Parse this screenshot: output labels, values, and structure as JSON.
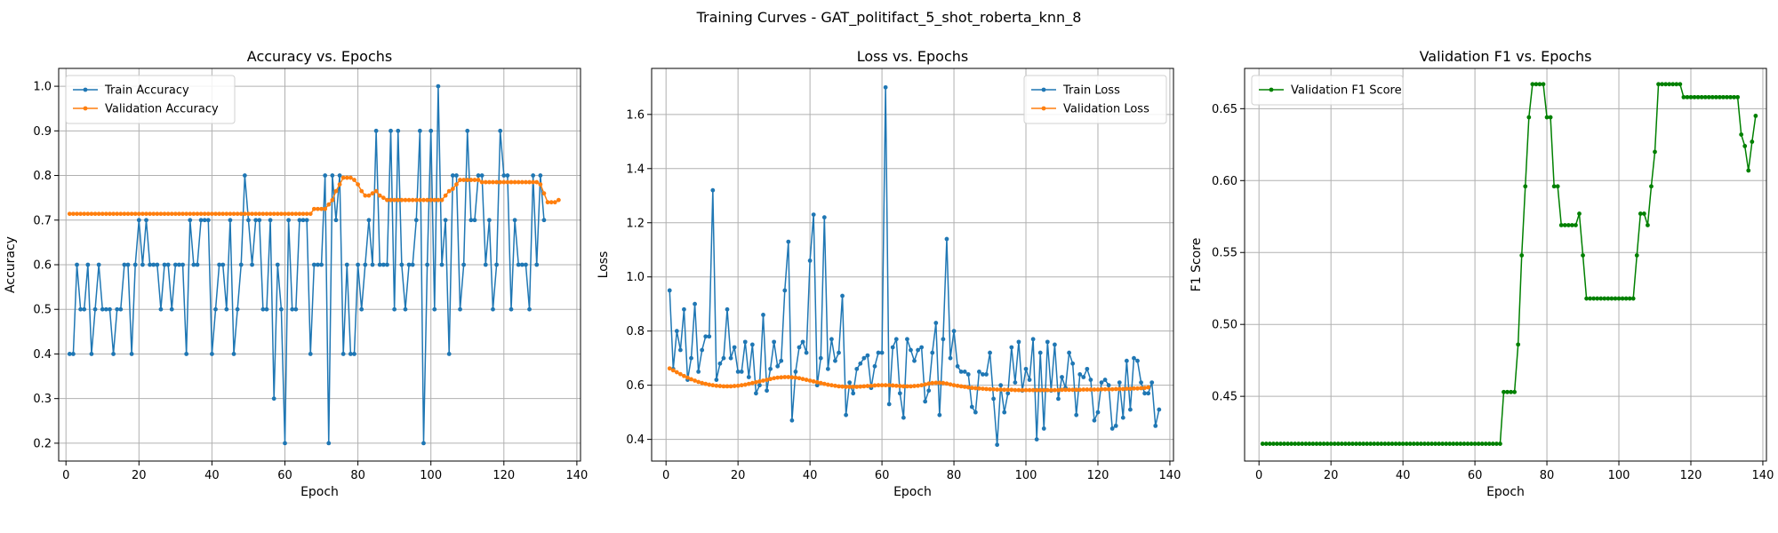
{
  "suptitle": "Training Curves - GAT_politifact_5_shot_roberta_knn_8",
  "chart_data": [
    {
      "type": "line",
      "title": "Accuracy vs. Epochs",
      "xlabel": "Epoch",
      "ylabel": "Accuracy",
      "xlim": [
        -2,
        141
      ],
      "ylim": [
        0.16,
        1.04
      ],
      "xticks": [
        0,
        20,
        40,
        60,
        80,
        100,
        120,
        140
      ],
      "yticks": [
        0.2,
        0.3,
        0.4,
        0.5,
        0.6,
        0.7,
        0.8,
        0.9,
        1.0
      ],
      "ytick_labels": [
        "0.2",
        "0.3",
        "0.4",
        "0.5",
        "0.6",
        "0.7",
        "0.8",
        "0.9",
        "1.0"
      ],
      "grid": true,
      "legend": "upper-left",
      "series": [
        {
          "name": "Train Accuracy",
          "color": "#1f77b4",
          "values": [
            0.4,
            0.4,
            0.6,
            0.5,
            0.5,
            0.6,
            0.4,
            0.5,
            0.6,
            0.5,
            0.5,
            0.5,
            0.4,
            0.5,
            0.5,
            0.6,
            0.6,
            0.4,
            0.6,
            0.7,
            0.6,
            0.7,
            0.6,
            0.6,
            0.6,
            0.5,
            0.6,
            0.6,
            0.5,
            0.6,
            0.6,
            0.6,
            0.4,
            0.7,
            0.6,
            0.6,
            0.7,
            0.7,
            0.7,
            0.4,
            0.5,
            0.6,
            0.6,
            0.5,
            0.7,
            0.4,
            0.5,
            0.6,
            0.8,
            0.7,
            0.6,
            0.7,
            0.7,
            0.5,
            0.5,
            0.7,
            0.3,
            0.6,
            0.5,
            0.2,
            0.7,
            0.5,
            0.5,
            0.7,
            0.7,
            0.7,
            0.4,
            0.6,
            0.6,
            0.6,
            0.8,
            0.2,
            0.8,
            0.7,
            0.8,
            0.4,
            0.6,
            0.4,
            0.4,
            0.6,
            0.5,
            0.6,
            0.7,
            0.6,
            0.9,
            0.6,
            0.6,
            0.6,
            0.9,
            0.5,
            0.9,
            0.6,
            0.5,
            0.6,
            0.6,
            0.7,
            0.9,
            0.2,
            0.6,
            0.9,
            0.5,
            1.0,
            0.6,
            0.7,
            0.4,
            0.8,
            0.8,
            0.5,
            0.6,
            0.9,
            0.7,
            0.7,
            0.8,
            0.8,
            0.6,
            0.7,
            0.5,
            0.6,
            0.9,
            0.8,
            0.8,
            0.5,
            0.7,
            0.6,
            0.6,
            0.6,
            0.5,
            0.8,
            0.6,
            0.8,
            0.7
          ]
        },
        {
          "name": "Validation Accuracy",
          "color": "#ff7f0e",
          "values": [
            0.714,
            0.714,
            0.714,
            0.714,
            0.714,
            0.714,
            0.714,
            0.714,
            0.714,
            0.714,
            0.714,
            0.714,
            0.714,
            0.714,
            0.714,
            0.714,
            0.714,
            0.714,
            0.714,
            0.714,
            0.714,
            0.714,
            0.714,
            0.714,
            0.714,
            0.714,
            0.714,
            0.714,
            0.714,
            0.714,
            0.714,
            0.714,
            0.714,
            0.714,
            0.714,
            0.714,
            0.714,
            0.714,
            0.714,
            0.714,
            0.714,
            0.714,
            0.714,
            0.714,
            0.714,
            0.714,
            0.714,
            0.714,
            0.714,
            0.714,
            0.714,
            0.714,
            0.714,
            0.714,
            0.714,
            0.714,
            0.714,
            0.714,
            0.714,
            0.714,
            0.714,
            0.714,
            0.714,
            0.714,
            0.714,
            0.714,
            0.714,
            0.725,
            0.725,
            0.725,
            0.725,
            0.735,
            0.745,
            0.765,
            0.78,
            0.795,
            0.795,
            0.795,
            0.79,
            0.78,
            0.765,
            0.755,
            0.755,
            0.76,
            0.765,
            0.755,
            0.75,
            0.745,
            0.745,
            0.745,
            0.745,
            0.745,
            0.745,
            0.745,
            0.745,
            0.745,
            0.745,
            0.745,
            0.745,
            0.745,
            0.745,
            0.745,
            0.745,
            0.755,
            0.765,
            0.77,
            0.78,
            0.79,
            0.79,
            0.79,
            0.79,
            0.79,
            0.79,
            0.785,
            0.785,
            0.785,
            0.785,
            0.785,
            0.785,
            0.785,
            0.785,
            0.785,
            0.785,
            0.785,
            0.785,
            0.785,
            0.785,
            0.785,
            0.785,
            0.78,
            0.76,
            0.74,
            0.74,
            0.74,
            0.745
          ]
        }
      ]
    },
    {
      "type": "line",
      "title": "Loss vs. Epochs",
      "xlabel": "Epoch",
      "ylabel": "Loss",
      "xlim": [
        -4,
        141
      ],
      "ylim": [
        0.32,
        1.77
      ],
      "xticks": [
        0,
        20,
        40,
        60,
        80,
        100,
        120,
        140
      ],
      "yticks": [
        0.4,
        0.6,
        0.8,
        1.0,
        1.2,
        1.4,
        1.6
      ],
      "ytick_labels": [
        "0.4",
        "0.6",
        "0.8",
        "1.0",
        "1.2",
        "1.4",
        "1.6"
      ],
      "grid": true,
      "legend": "upper-right",
      "series": [
        {
          "name": "Train Loss",
          "color": "#1f77b4",
          "values": [
            0.95,
            0.66,
            0.8,
            0.73,
            0.88,
            0.62,
            0.7,
            0.9,
            0.65,
            0.73,
            0.78,
            0.78,
            1.32,
            0.62,
            0.68,
            0.7,
            0.88,
            0.7,
            0.74,
            0.65,
            0.65,
            0.76,
            0.63,
            0.75,
            0.57,
            0.6,
            0.86,
            0.58,
            0.66,
            0.76,
            0.67,
            0.69,
            0.95,
            1.13,
            0.47,
            0.65,
            0.74,
            0.76,
            0.72,
            1.06,
            1.23,
            0.6,
            0.7,
            1.22,
            0.66,
            0.77,
            0.69,
            0.72,
            0.93,
            0.49,
            0.61,
            0.57,
            0.66,
            0.68,
            0.7,
            0.71,
            0.59,
            0.67,
            0.72,
            0.72,
            1.7,
            0.53,
            0.74,
            0.77,
            0.57,
            0.48,
            0.77,
            0.73,
            0.69,
            0.73,
            0.74,
            0.54,
            0.58,
            0.72,
            0.83,
            0.49,
            0.77,
            1.14,
            0.7,
            0.8,
            0.67,
            0.65,
            0.65,
            0.64,
            0.52,
            0.5,
            0.65,
            0.64,
            0.64,
            0.72,
            0.55,
            0.38,
            0.6,
            0.5,
            0.57,
            0.74,
            0.61,
            0.76,
            0.58,
            0.66,
            0.62,
            0.77,
            0.4,
            0.72,
            0.44,
            0.76,
            0.58,
            0.75,
            0.55,
            0.63,
            0.59,
            0.72,
            0.68,
            0.49,
            0.64,
            0.63,
            0.66,
            0.62,
            0.47,
            0.5,
            0.61,
            0.62,
            0.6,
            0.44,
            0.45,
            0.61,
            0.48,
            0.69,
            0.51,
            0.7,
            0.69,
            0.61,
            0.57,
            0.57,
            0.61,
            0.45,
            0.51
          ]
        },
        {
          "name": "Validation Loss",
          "color": "#ff7f0e",
          "values": [
            0.662,
            0.655,
            0.648,
            0.641,
            0.634,
            0.628,
            0.622,
            0.617,
            0.612,
            0.608,
            0.605,
            0.602,
            0.6,
            0.598,
            0.597,
            0.596,
            0.596,
            0.596,
            0.597,
            0.598,
            0.6,
            0.602,
            0.605,
            0.608,
            0.611,
            0.614,
            0.617,
            0.62,
            0.623,
            0.626,
            0.628,
            0.629,
            0.63,
            0.63,
            0.629,
            0.628,
            0.626,
            0.623,
            0.62,
            0.617,
            0.614,
            0.611,
            0.608,
            0.605,
            0.602,
            0.6,
            0.598,
            0.596,
            0.595,
            0.594,
            0.594,
            0.594,
            0.594,
            0.595,
            0.596,
            0.597,
            0.598,
            0.599,
            0.6,
            0.6,
            0.6,
            0.6,
            0.599,
            0.598,
            0.597,
            0.596,
            0.596,
            0.596,
            0.597,
            0.598,
            0.6,
            0.603,
            0.606,
            0.608,
            0.609,
            0.609,
            0.608,
            0.606,
            0.603,
            0.6,
            0.598,
            0.596,
            0.594,
            0.592,
            0.59,
            0.589,
            0.588,
            0.587,
            0.586,
            0.585,
            0.585,
            0.584,
            0.584,
            0.583,
            0.583,
            0.583,
            0.582,
            0.582,
            0.582,
            0.582,
            0.582,
            0.582,
            0.582,
            0.582,
            0.582,
            0.582,
            0.582,
            0.582,
            0.582,
            0.583,
            0.583,
            0.583,
            0.583,
            0.583,
            0.583,
            0.584,
            0.584,
            0.584,
            0.584,
            0.584,
            0.585,
            0.585,
            0.585,
            0.585,
            0.586,
            0.586,
            0.586,
            0.587,
            0.587,
            0.588,
            0.588,
            0.589,
            0.59,
            0.592
          ]
        }
      ]
    },
    {
      "type": "line",
      "title": "Validation F1 vs. Epochs",
      "xlabel": "Epoch",
      "ylabel": "F1 Score",
      "xlim": [
        -4,
        141
      ],
      "ylim": [
        0.405,
        0.678
      ],
      "xticks": [
        0,
        20,
        40,
        60,
        80,
        100,
        120,
        140
      ],
      "yticks": [
        0.45,
        0.5,
        0.55,
        0.6,
        0.65
      ],
      "ytick_labels": [
        "0.45",
        "0.50",
        "0.55",
        "0.60",
        "0.65"
      ],
      "grid": true,
      "legend": "upper-left",
      "series": [
        {
          "name": "Validation F1 Score",
          "color": "#008000",
          "values": [
            0.417,
            0.417,
            0.417,
            0.417,
            0.417,
            0.417,
            0.417,
            0.417,
            0.417,
            0.417,
            0.417,
            0.417,
            0.417,
            0.417,
            0.417,
            0.417,
            0.417,
            0.417,
            0.417,
            0.417,
            0.417,
            0.417,
            0.417,
            0.417,
            0.417,
            0.417,
            0.417,
            0.417,
            0.417,
            0.417,
            0.417,
            0.417,
            0.417,
            0.417,
            0.417,
            0.417,
            0.417,
            0.417,
            0.417,
            0.417,
            0.417,
            0.417,
            0.417,
            0.417,
            0.417,
            0.417,
            0.417,
            0.417,
            0.417,
            0.417,
            0.417,
            0.417,
            0.417,
            0.417,
            0.417,
            0.417,
            0.417,
            0.417,
            0.417,
            0.417,
            0.417,
            0.417,
            0.417,
            0.417,
            0.417,
            0.417,
            0.417,
            0.453,
            0.453,
            0.453,
            0.453,
            0.486,
            0.548,
            0.596,
            0.644,
            0.667,
            0.667,
            0.667,
            0.667,
            0.644,
            0.644,
            0.596,
            0.596,
            0.569,
            0.569,
            0.569,
            0.569,
            0.569,
            0.577,
            0.548,
            0.518,
            0.518,
            0.518,
            0.518,
            0.518,
            0.518,
            0.518,
            0.518,
            0.518,
            0.518,
            0.518,
            0.518,
            0.518,
            0.518,
            0.548,
            0.577,
            0.577,
            0.569,
            0.596,
            0.62,
            0.667,
            0.667,
            0.667,
            0.667,
            0.667,
            0.667,
            0.667,
            0.658,
            0.658,
            0.658,
            0.658,
            0.658,
            0.658,
            0.658,
            0.658,
            0.658,
            0.658,
            0.658,
            0.658,
            0.658,
            0.658,
            0.658,
            0.658,
            0.632,
            0.624,
            0.607,
            0.627,
            0.645
          ]
        }
      ]
    }
  ]
}
